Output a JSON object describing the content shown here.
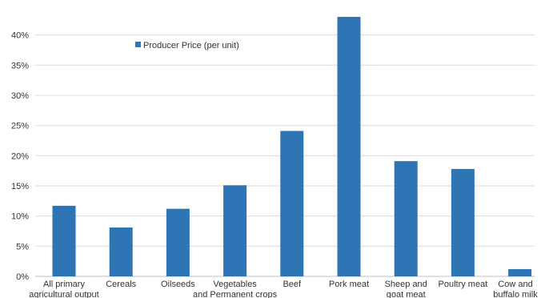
{
  "chart_data": {
    "type": "bar",
    "categories": [
      [
        "All primary",
        "agricultural output"
      ],
      [
        "Cereals"
      ],
      [
        "Oilseeds"
      ],
      [
        "Vegetables",
        "and Permanent crops"
      ],
      [
        "Beef"
      ],
      [
        "Pork meat"
      ],
      [
        "Sheep and",
        "goat meat"
      ],
      [
        "Poultry meat"
      ],
      [
        "Cow and",
        "buffalo milk"
      ]
    ],
    "series": [
      {
        "name": "Producer Price (per unit)",
        "values": [
          11.7,
          8.1,
          11.2,
          15.1,
          24.1,
          43.0,
          19.1,
          17.8,
          1.2
        ]
      }
    ],
    "ylim": [
      0,
      45
    ],
    "yticks": [
      "0%",
      "5%",
      "10%",
      "15%",
      "20%",
      "25%",
      "30%",
      "35%",
      "40%"
    ],
    "ytick_values": [
      0,
      5,
      10,
      15,
      20,
      25,
      30,
      35,
      40
    ],
    "grid": true,
    "legend_position": "top-left",
    "colors": {
      "bar": "#2e75b6",
      "grid": "#d9d9d9",
      "axis": "#bfbfbf"
    }
  }
}
